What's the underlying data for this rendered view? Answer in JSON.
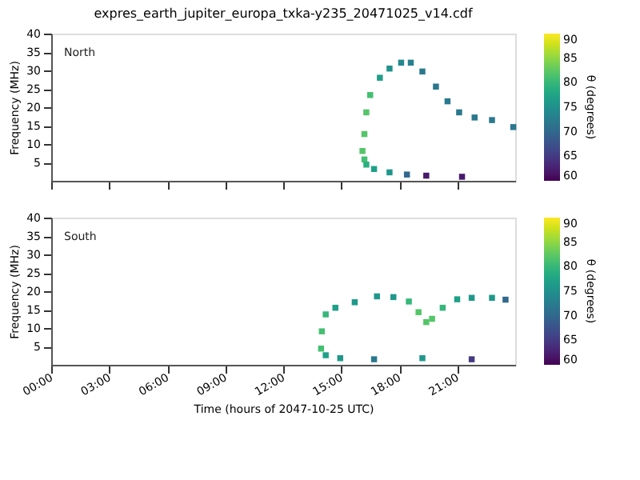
{
  "chart_data": [
    {
      "type": "scatter",
      "title": "expres_earth_jupiter_europa_txka-y235_20471025_v14.cdf",
      "ylabel": "Frequency (MHz)",
      "clabel": "θ (degrees)",
      "annotations": [
        "North"
      ],
      "marker": "square",
      "grid": false,
      "tick_labels": "y",
      "x": [
        16.1,
        16.2,
        16.3,
        16.5,
        17.0,
        17.5,
        18.1,
        18.6,
        19.2,
        19.9,
        20.5,
        21.1,
        21.9,
        22.8,
        23.9,
        16.2,
        16.3,
        16.7,
        17.5,
        18.4,
        19.4,
        21.25
      ],
      "values": [
        8.1,
        12.7,
        18.6,
        23.3,
        28,
        30.5,
        32.1,
        32.1,
        29.7,
        25.6,
        21.6,
        18.6,
        17.2,
        16.5,
        14.6,
        5.8,
        4.4,
        3.2,
        2.3,
        1.7,
        1.4,
        1.1
      ],
      "cvalues": [
        82,
        82,
        82,
        81,
        77,
        75,
        74,
        73,
        72,
        72,
        72,
        72,
        72,
        72,
        72,
        81,
        79,
        77,
        76,
        70,
        62,
        62
      ],
      "xlim": [
        0,
        24
      ],
      "xticks": [
        {
          "value": 0,
          "label": null
        },
        {
          "value": 3,
          "label": null
        },
        {
          "value": 6,
          "label": null
        },
        {
          "value": 9,
          "label": null
        },
        {
          "value": 12,
          "label": null
        },
        {
          "value": 15,
          "label": null
        },
        {
          "value": 18,
          "label": null
        },
        {
          "value": 21,
          "label": null
        }
      ],
      "ylim": [
        0,
        40
      ],
      "yticks": [
        5,
        10,
        15,
        20,
        25,
        30,
        35,
        40
      ],
      "clim": [
        60,
        90
      ],
      "cticks": [
        60,
        65,
        70,
        75,
        80,
        85,
        90
      ]
    },
    {
      "type": "scatter",
      "xlabel": "Time (hours of 2047-10-25 UTC)",
      "ylabel": "Frequency (MHz)",
      "clabel": "θ (degrees)",
      "annotations": [
        "South"
      ],
      "marker": "square",
      "grid": false,
      "x": [
        13.96,
        14.0,
        14.2,
        14.7,
        15.7,
        16.85,
        17.7,
        18.5,
        19.0,
        19.4,
        19.7,
        20.25,
        21.0,
        21.75,
        22.8,
        23.5,
        14.2,
        14.95,
        16.7,
        19.2,
        21.75
      ],
      "values": [
        4.4,
        9.1,
        13.7,
        15.5,
        17.0,
        18.6,
        18.4,
        17.2,
        14.3,
        11.6,
        12.5,
        15.5,
        17.8,
        18.2,
        18.2,
        17.7,
        2.6,
        1.8,
        1.5,
        1.8,
        1.5
      ],
      "cvalues": [
        81,
        81,
        80,
        77,
        76,
        76,
        76,
        80,
        82,
        82,
        82,
        80,
        77,
        76,
        76,
        70,
        77,
        76,
        72,
        76,
        65
      ],
      "xlim": [
        0,
        24
      ],
      "xticks": [
        {
          "value": 0,
          "label": "00:00"
        },
        {
          "value": 3,
          "label": "03:00"
        },
        {
          "value": 6,
          "label": "06:00"
        },
        {
          "value": 9,
          "label": "09:00"
        },
        {
          "value": 12,
          "label": "12:00"
        },
        {
          "value": 15,
          "label": "15:00"
        },
        {
          "value": 18,
          "label": "18:00"
        },
        {
          "value": 21,
          "label": "21:00"
        }
      ],
      "ylim": [
        0,
        40
      ],
      "yticks": [
        5,
        10,
        15,
        20,
        25,
        30,
        35,
        40
      ],
      "clim": [
        60,
        90
      ],
      "cticks": [
        60,
        65,
        70,
        75,
        80,
        85,
        90
      ]
    }
  ]
}
